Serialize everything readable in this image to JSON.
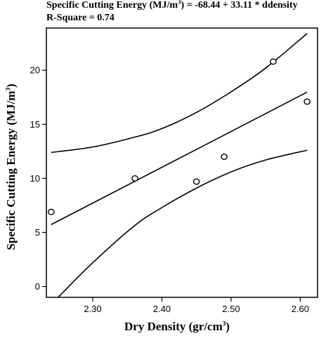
{
  "chart_data": {
    "type": "scatter",
    "title_line1_prefix": "Specific Cutting Energy (MJ/m",
    "title_line1_sup": "3",
    "title_line1_suffix": ") = -68.44 + 33.11 * ddensity",
    "title_line2": "R-Square = 0.74",
    "xlabel_prefix": "Dry Density (gr/cm",
    "xlabel_sup": "3",
    "xlabel_suffix": ")",
    "ylabel_prefix": "Specific Cutting Energy (MJ/m",
    "ylabel_sup": "3",
    "ylabel_suffix": ")",
    "xlim": [
      2.233,
      2.625
    ],
    "ylim": [
      -1.0,
      23.9
    ],
    "xticks": [
      {
        "value": 2.3,
        "label": "2.30"
      },
      {
        "value": 2.4,
        "label": "2.40"
      },
      {
        "value": 2.5,
        "label": "2.50"
      },
      {
        "value": 2.6,
        "label": "2.60"
      }
    ],
    "yticks": [
      {
        "value": 0,
        "label": "0"
      },
      {
        "value": 5,
        "label": "5"
      },
      {
        "value": 10,
        "label": "10"
      },
      {
        "value": 15,
        "label": "15"
      },
      {
        "value": 20,
        "label": "20"
      }
    ],
    "points": [
      {
        "x": 2.24,
        "y": 6.9
      },
      {
        "x": 2.361,
        "y": 10.0
      },
      {
        "x": 2.45,
        "y": 9.7
      },
      {
        "x": 2.49,
        "y": 12.0
      },
      {
        "x": 2.561,
        "y": 20.8
      },
      {
        "x": 2.61,
        "y": 17.1
      }
    ],
    "fit_line": {
      "intercept": -68.44,
      "slope": 33.11,
      "x_range": [
        2.24,
        2.61
      ]
    },
    "upper_band": [
      {
        "x": 2.24,
        "y": 12.4
      },
      {
        "x": 2.3,
        "y": 12.9
      },
      {
        "x": 2.36,
        "y": 13.8
      },
      {
        "x": 2.4,
        "y": 14.6
      },
      {
        "x": 2.45,
        "y": 16.1
      },
      {
        "x": 2.5,
        "y": 18.0
      },
      {
        "x": 2.55,
        "y": 20.2
      },
      {
        "x": 2.61,
        "y": 23.4
      }
    ],
    "lower_band": [
      {
        "x": 2.25,
        "y": -1.0
      },
      {
        "x": 2.3,
        "y": 2.2
      },
      {
        "x": 2.36,
        "y": 5.6
      },
      {
        "x": 2.4,
        "y": 7.3
      },
      {
        "x": 2.45,
        "y": 9.1
      },
      {
        "x": 2.5,
        "y": 10.6
      },
      {
        "x": 2.55,
        "y": 11.7
      },
      {
        "x": 2.61,
        "y": 12.6
      }
    ],
    "grid": false,
    "legend": "none"
  }
}
